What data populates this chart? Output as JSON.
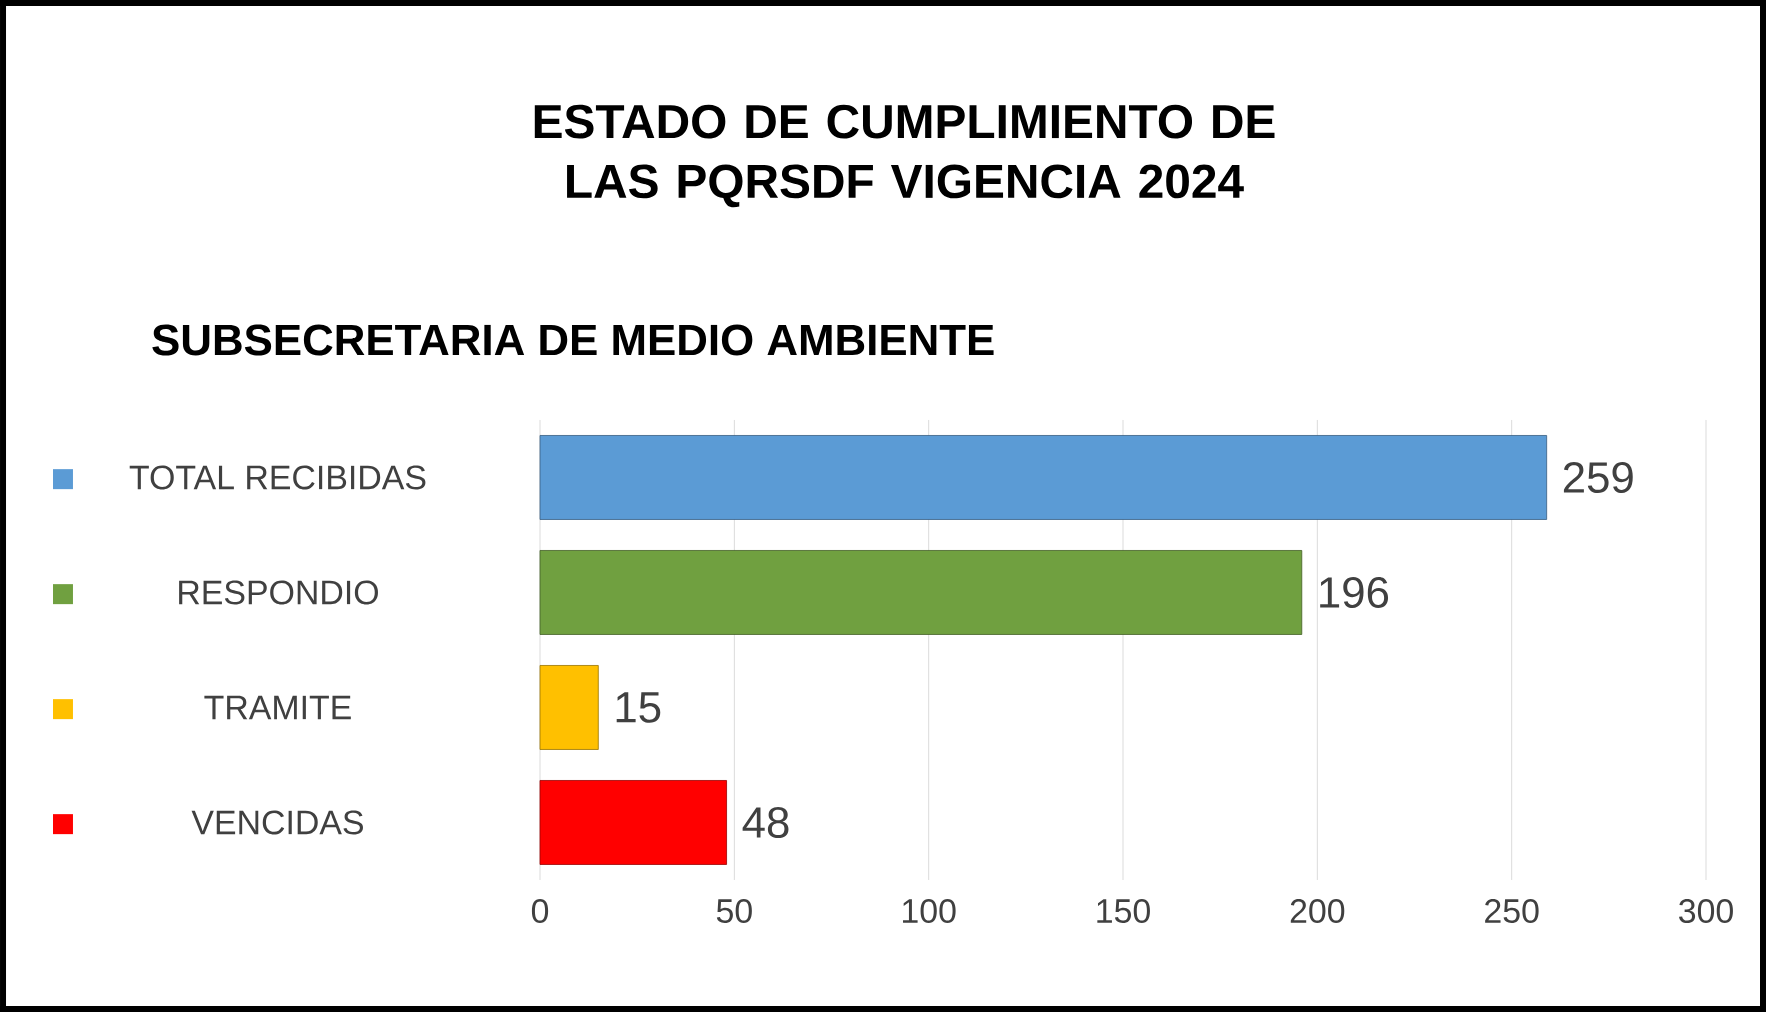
{
  "chart_data": {
    "type": "bar",
    "orientation": "horizontal",
    "title": "ESTADO DE  CUMPLIMIENTO  DE LAS PQRSDF VIGENCIA 2024",
    "subtitle": "SUBSECRETARIA DE MEDIO AMBIENTE",
    "categories": [
      "TOTAL RECIBIDAS",
      "RESPONDIO",
      "TRAMITE",
      "VENCIDAS"
    ],
    "values": [
      259,
      196,
      15,
      48
    ],
    "colors": [
      "#5b9bd5",
      "#70a040",
      "#ffc000",
      "#ff0000"
    ],
    "xlim": [
      0,
      300
    ],
    "xticks": [
      0,
      50,
      100,
      150,
      200,
      250,
      300
    ],
    "grid": "x",
    "data_labels": true
  }
}
